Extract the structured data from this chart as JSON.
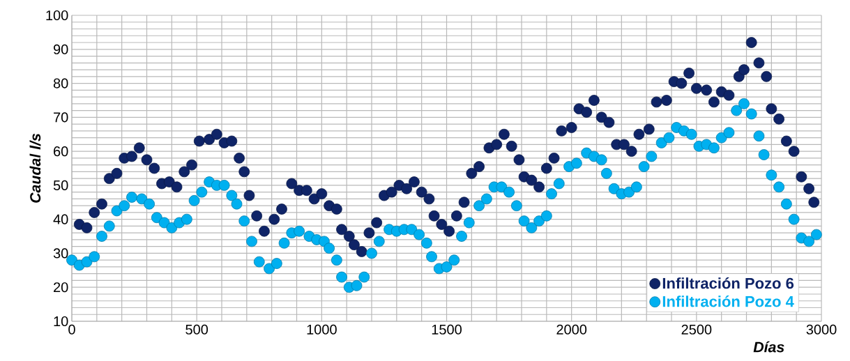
{
  "chart_data": {
    "type": "scatter",
    "xlabel": "Días",
    "ylabel": "Caudal l/s",
    "xlim": [
      0,
      3000
    ],
    "ylim": [
      10,
      100
    ],
    "xticks": [
      0,
      {
        "value": 100,
        "label": null
      },
      {
        "value": 200,
        "label": null
      },
      {
        "value": 300,
        "label": null
      },
      {
        "value": 400,
        "label": null
      },
      500,
      {
        "value": 600,
        "label": null
      },
      {
        "value": 700,
        "label": null
      },
      {
        "value": 800,
        "label": null
      },
      {
        "value": 900,
        "label": null
      },
      1000,
      {
        "value": 1100,
        "label": null
      },
      {
        "value": 1200,
        "label": null
      },
      {
        "value": 1300,
        "label": null
      },
      {
        "value": 1400,
        "label": null
      },
      1500,
      {
        "value": 1600,
        "label": null
      },
      {
        "value": 1700,
        "label": null
      },
      {
        "value": 1800,
        "label": null
      },
      {
        "value": 1900,
        "label": null
      },
      2000,
      {
        "value": 2100,
        "label": null
      },
      {
        "value": 2200,
        "label": null
      },
      {
        "value": 2300,
        "label": null
      },
      {
        "value": 2400,
        "label": null
      },
      2500,
      {
        "value": 2600,
        "label": null
      },
      {
        "value": 2700,
        "label": null
      },
      {
        "value": 2800,
        "label": null
      },
      {
        "value": 2900,
        "label": null
      },
      3000
    ],
    "yticks": [
      10,
      {
        "value": 12,
        "label": null
      },
      {
        "value": 14,
        "label": null
      },
      {
        "value": 16,
        "label": null
      },
      {
        "value": 18,
        "label": null
      },
      20,
      {
        "value": 22,
        "label": null
      },
      {
        "value": 24,
        "label": null
      },
      {
        "value": 26,
        "label": null
      },
      {
        "value": 28,
        "label": null
      },
      30,
      {
        "value": 32,
        "label": null
      },
      {
        "value": 34,
        "label": null
      },
      {
        "value": 36,
        "label": null
      },
      {
        "value": 38,
        "label": null
      },
      40,
      {
        "value": 42,
        "label": null
      },
      {
        "value": 44,
        "label": null
      },
      {
        "value": 46,
        "label": null
      },
      {
        "value": 48,
        "label": null
      },
      50,
      {
        "value": 52,
        "label": null
      },
      {
        "value": 54,
        "label": null
      },
      {
        "value": 56,
        "label": null
      },
      {
        "value": 58,
        "label": null
      },
      60,
      {
        "value": 62,
        "label": null
      },
      {
        "value": 64,
        "label": null
      },
      {
        "value": 66,
        "label": null
      },
      {
        "value": 68,
        "label": null
      },
      70,
      {
        "value": 72,
        "label": null
      },
      {
        "value": 74,
        "label": null
      },
      {
        "value": 76,
        "label": null
      },
      {
        "value": 78,
        "label": null
      },
      80,
      {
        "value": 82,
        "label": null
      },
      {
        "value": 84,
        "label": null
      },
      {
        "value": 86,
        "label": null
      },
      {
        "value": 88,
        "label": null
      },
      90,
      {
        "value": 92,
        "label": null
      },
      {
        "value": 94,
        "label": null
      },
      {
        "value": 96,
        "label": null
      },
      {
        "value": 98,
        "label": null
      },
      100
    ],
    "grid": true,
    "legend": "bottom right",
    "marker": "circle",
    "series": [
      {
        "name": "Infiltración Pozo 6",
        "color": "#0f2467",
        "x": [
          30,
          60,
          90,
          120,
          150,
          180,
          210,
          240,
          270,
          300,
          330,
          360,
          390,
          420,
          450,
          480,
          510,
          550,
          580,
          610,
          640,
          670,
          690,
          710,
          740,
          770,
          810,
          840,
          880,
          910,
          940,
          970,
          1000,
          1030,
          1060,
          1080,
          1110,
          1130,
          1160,
          1190,
          1220,
          1250,
          1280,
          1310,
          1340,
          1370,
          1400,
          1430,
          1450,
          1480,
          1510,
          1540,
          1570,
          1600,
          1630,
          1670,
          1700,
          1730,
          1760,
          1790,
          1810,
          1840,
          1870,
          1900,
          1930,
          1960,
          2000,
          2030,
          2060,
          2090,
          2120,
          2150,
          2180,
          2210,
          2240,
          2270,
          2310,
          2340,
          2380,
          2410,
          2440,
          2470,
          2500,
          2540,
          2570,
          2600,
          2630,
          2670,
          2690,
          2720,
          2750,
          2780,
          2800,
          2830,
          2860,
          2890,
          2920,
          2950,
          2970
        ],
        "values": [
          38.5,
          37.5,
          42,
          44.5,
          52,
          53.5,
          58,
          58.5,
          61,
          57.5,
          55,
          50.5,
          51,
          49.5,
          54,
          56,
          63,
          63.5,
          65,
          62.5,
          63,
          58,
          54,
          47,
          41,
          36.5,
          40,
          43,
          50.5,
          48.5,
          48.5,
          46,
          47.5,
          44,
          43,
          37,
          35,
          32.5,
          30.5,
          36,
          39,
          47,
          48,
          50,
          49,
          51,
          48,
          46,
          41,
          38.5,
          36.5,
          41,
          45,
          53.5,
          55.5,
          61,
          62,
          65,
          61.5,
          57.5,
          52.5,
          51.5,
          49.5,
          55,
          58,
          66,
          67,
          72.5,
          71.5,
          75,
          70,
          68.5,
          62,
          62,
          60,
          65,
          66.5,
          74.5,
          75,
          80.5,
          80,
          83,
          78.5,
          78,
          74.5,
          77.5,
          76.5,
          82,
          84,
          92,
          86,
          82,
          72.5,
          69.5,
          63,
          60,
          52.5,
          49,
          45
        ]
      },
      {
        "name": "Infiltración Pozo 4",
        "color": "#00b0f0",
        "x": [
          0,
          30,
          60,
          90,
          120,
          150,
          180,
          210,
          240,
          280,
          310,
          340,
          370,
          400,
          430,
          460,
          490,
          520,
          550,
          580,
          610,
          640,
          660,
          690,
          720,
          750,
          790,
          820,
          850,
          880,
          910,
          950,
          980,
          1010,
          1030,
          1060,
          1080,
          1110,
          1140,
          1170,
          1200,
          1230,
          1270,
          1300,
          1330,
          1360,
          1390,
          1420,
          1440,
          1470,
          1500,
          1530,
          1560,
          1590,
          1630,
          1660,
          1690,
          1720,
          1750,
          1780,
          1810,
          1840,
          1870,
          1900,
          1920,
          1950,
          1990,
          2020,
          2060,
          2090,
          2120,
          2140,
          2170,
          2200,
          2230,
          2260,
          2290,
          2320,
          2360,
          2390,
          2420,
          2450,
          2480,
          2510,
          2540,
          2570,
          2600,
          2630,
          2660,
          2690,
          2720,
          2750,
          2770,
          2800,
          2830,
          2860,
          2890,
          2920,
          2950,
          2980
        ],
        "values": [
          28,
          26.5,
          27.5,
          29,
          35,
          38,
          42.5,
          44,
          46.5,
          46,
          44.5,
          40.5,
          39,
          37.5,
          39,
          40,
          45.5,
          48,
          51,
          50,
          50,
          47,
          44.5,
          39.5,
          33.5,
          27.5,
          25.5,
          27,
          33,
          36,
          36.5,
          35,
          34,
          33.5,
          31.5,
          28,
          23,
          20,
          20.5,
          23,
          30,
          33.5,
          37,
          36.5,
          37,
          37,
          35.5,
          33,
          29,
          25.5,
          26,
          28,
          35,
          39,
          44,
          46,
          49.5,
          49.5,
          48,
          44,
          39.5,
          37.5,
          39.5,
          41,
          47.5,
          50.5,
          55.5,
          56.5,
          59.5,
          58.5,
          57.5,
          53.5,
          49,
          47.5,
          48,
          49.5,
          55.5,
          58.5,
          62.5,
          64,
          67,
          66,
          65,
          61.5,
          62,
          61,
          64,
          65.5,
          72,
          74,
          71,
          64.5,
          59,
          53,
          49.5,
          44.5,
          40,
          34.5,
          33.5,
          35.5
        ]
      }
    ]
  }
}
